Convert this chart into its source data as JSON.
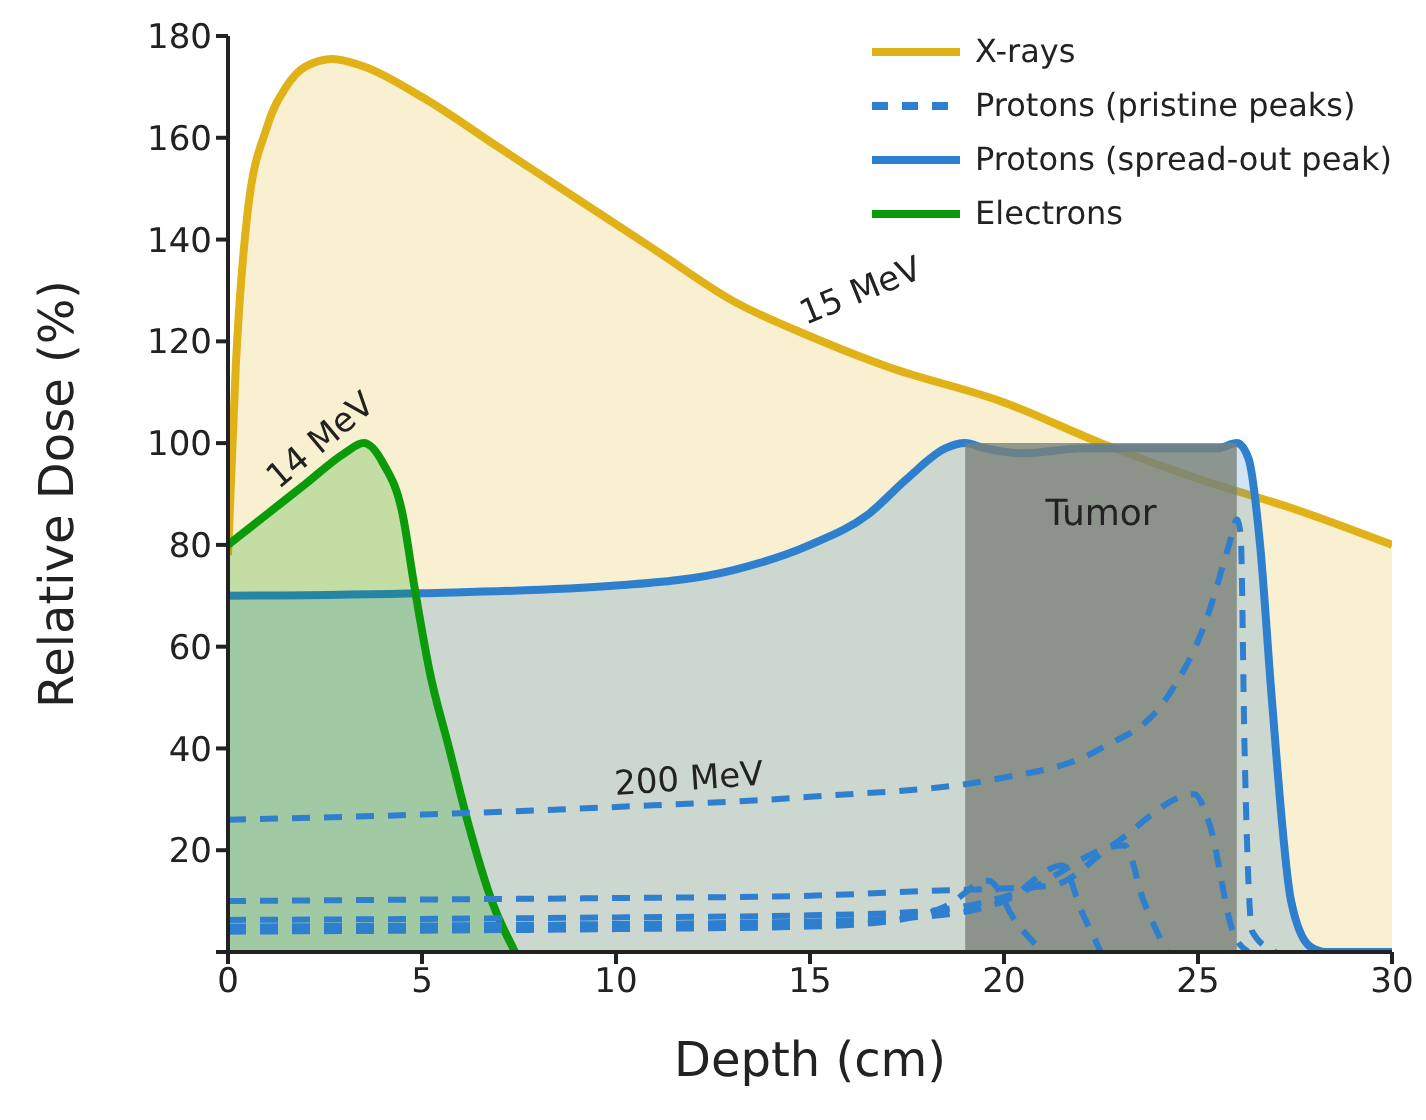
{
  "chart_data": {
    "type": "area",
    "xlabel": "Depth (cm)",
    "ylabel": "Relative Dose (%)",
    "xlim": [
      0,
      30
    ],
    "xticks": [
      0,
      5,
      10,
      15,
      20,
      25,
      30
    ],
    "ylim": [
      0,
      180
    ],
    "yticks": [
      {
        "value": 0,
        "label": null
      },
      20,
      40,
      60,
      80,
      100,
      120,
      140,
      160,
      180
    ],
    "grid": false,
    "legend": "top right",
    "marker": "none",
    "series": [
      {
        "name": "X-rays",
        "type": "area",
        "color": "#e0b218",
        "x": [
          0,
          0.2,
          0.5,
          1,
          1.5,
          2,
          2.7,
          3.5,
          5,
          7,
          9,
          11,
          13,
          15,
          17,
          20,
          22.5,
          25,
          27.5,
          30
        ],
        "values": [
          78,
          115,
          145,
          162,
          170,
          174,
          175.5,
          174,
          168,
          158,
          148,
          138,
          128,
          121,
          115,
          108,
          100,
          93,
          87,
          80
        ]
      },
      {
        "name": "Protons (pristine peaks)",
        "type": "line",
        "line_style": "dashed",
        "color": "#2f7fcf",
        "x": [
          0,
          5,
          10,
          15,
          19.8,
          22.5,
          24.2,
          25.2,
          25.8,
          26,
          26.1,
          26.2,
          26.4,
          27
        ],
        "values": [
          26,
          27,
          28.5,
          30.5,
          34,
          40,
          50,
          65,
          80,
          85,
          82,
          40,
          4,
          0
        ]
      },
      {
        "name": "Protons (spread-out peak)",
        "type": "area",
        "color": "#2f7fcf",
        "x": [
          0,
          5,
          10,
          13,
          15,
          16.5,
          17.5,
          18.5,
          19,
          19.5,
          20.5,
          22,
          24,
          25.5,
          26,
          26.3,
          26.6,
          26.9,
          27.4,
          27.9,
          28.3,
          30
        ],
        "values": [
          70,
          70.5,
          72,
          75,
          80,
          86,
          93,
          99,
          100,
          99,
          98,
          99,
          99,
          99,
          100,
          97,
          80,
          50,
          10,
          1,
          0,
          0
        ]
      },
      {
        "name": "Electrons",
        "type": "area",
        "color": "#0a9a0a",
        "x": [
          0,
          1,
          2,
          3,
          3.5,
          4,
          4.5,
          4.8,
          5.2,
          5.7,
          6.2,
          6.8,
          7.4
        ],
        "values": [
          80,
          86,
          92,
          98,
          100,
          96,
          86,
          72,
          55,
          40,
          25,
          10,
          0
        ]
      },
      {
        "type": "line",
        "line_style": "dashed",
        "color": "#2f7fcf",
        "x": [
          0,
          5,
          10,
          14.7,
          18,
          21.2,
          22.8,
          24.9,
          25.3,
          25.9,
          26.3
        ],
        "values": [
          10,
          10.3,
          10.6,
          11,
          12,
          13,
          21,
          31,
          25,
          4,
          0
        ]
      },
      {
        "type": "line",
        "line_style": "dashed",
        "color": "#2f7fcf",
        "x": [
          0,
          5,
          10,
          15,
          18,
          20.5,
          23.1,
          23.6,
          24.2
        ],
        "values": [
          6.3,
          6.5,
          6.8,
          7.2,
          8,
          12,
          21,
          10,
          0
        ]
      },
      {
        "type": "line",
        "line_style": "dashed",
        "color": "#2f7fcf",
        "x": [
          0,
          5,
          10,
          15,
          18,
          20,
          21.5,
          22,
          22.5
        ],
        "values": [
          5,
          5.2,
          5.5,
          6,
          7,
          10,
          17,
          8,
          0
        ]
      },
      {
        "type": "line",
        "line_style": "dashed",
        "color": "#2f7fcf",
        "x": [
          0,
          5,
          10,
          15,
          17,
          18.5,
          19.6,
          20.3,
          21
        ],
        "values": [
          4,
          4.2,
          4.5,
          5,
          6,
          9,
          14,
          6,
          0
        ]
      }
    ],
    "bands": [
      {
        "axis": "x",
        "from": 19,
        "to": 26,
        "label": "Tumor",
        "color": "#7a8278"
      }
    ],
    "annotations": [
      {
        "text": "15 MeV",
        "x": 15,
        "y": 121
      },
      {
        "text": "14 MeV",
        "x": 1.5,
        "y": 89
      },
      {
        "text": "200 MeV",
        "x": 10,
        "y": 28.5
      }
    ]
  }
}
